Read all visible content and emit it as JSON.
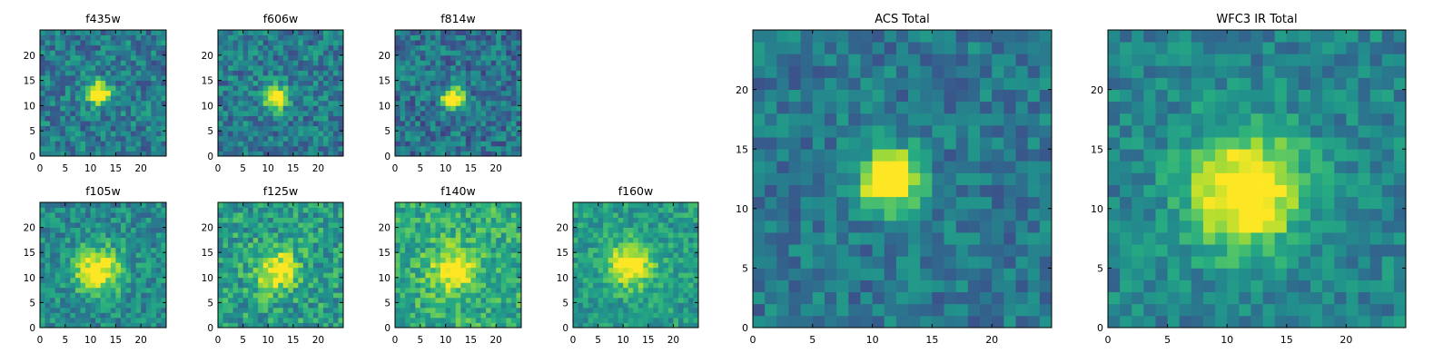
{
  "chart_data": [
    {
      "type": "heatmap",
      "title": "f435w",
      "xlabel": "",
      "ylabel": "",
      "xlim": [
        0,
        25
      ],
      "ylim": [
        0,
        25
      ],
      "xticks": [
        0,
        5,
        10,
        15,
        20
      ],
      "yticks": [
        0,
        5,
        10,
        15,
        20
      ],
      "colormap": "viridis",
      "grid": false,
      "source_peak": {
        "x": 11,
        "y": 12,
        "radius": 1.6,
        "intensity": 0.85
      },
      "background_level": 0.42,
      "noise": 0.38,
      "seed": 11
    },
    {
      "type": "heatmap",
      "title": "f606w",
      "xlabel": "",
      "ylabel": "",
      "xlim": [
        0,
        25
      ],
      "ylim": [
        0,
        25
      ],
      "xticks": [
        0,
        5,
        10,
        15,
        20
      ],
      "yticks": [
        0,
        5,
        10,
        15,
        20
      ],
      "colormap": "viridis",
      "grid": false,
      "source_peak": {
        "x": 11,
        "y": 11,
        "radius": 1.6,
        "intensity": 0.8
      },
      "background_level": 0.42,
      "noise": 0.38,
      "seed": 22
    },
    {
      "type": "heatmap",
      "title": "f814w",
      "xlabel": "",
      "ylabel": "",
      "xlim": [
        0,
        25
      ],
      "ylim": [
        0,
        25
      ],
      "xticks": [
        0,
        5,
        10,
        15,
        20
      ],
      "yticks": [
        0,
        5,
        10,
        15,
        20
      ],
      "colormap": "viridis",
      "grid": false,
      "source_peak": {
        "x": 11,
        "y": 11,
        "radius": 1.5,
        "intensity": 0.85
      },
      "background_level": 0.38,
      "noise": 0.38,
      "seed": 33
    },
    {
      "type": "heatmap",
      "title": "f105w",
      "xlabel": "",
      "ylabel": "",
      "xlim": [
        0,
        25
      ],
      "ylim": [
        0,
        25
      ],
      "xticks": [
        0,
        5,
        10,
        15,
        20
      ],
      "yticks": [
        0,
        5,
        10,
        15,
        20
      ],
      "colormap": "viridis",
      "grid": false,
      "source_peak": {
        "x": 11,
        "y": 11,
        "radius": 3.2,
        "intensity": 0.6
      },
      "background_level": 0.48,
      "noise": 0.34,
      "seed": 44
    },
    {
      "type": "heatmap",
      "title": "f125w",
      "xlabel": "",
      "ylabel": "",
      "xlim": [
        0,
        25
      ],
      "ylim": [
        0,
        25
      ],
      "xticks": [
        0,
        5,
        10,
        15,
        20
      ],
      "yticks": [
        0,
        5,
        10,
        15,
        20
      ],
      "colormap": "viridis",
      "grid": false,
      "source_peak": {
        "x": 11,
        "y": 11,
        "radius": 3.0,
        "intensity": 0.5
      },
      "background_level": 0.55,
      "noise": 0.4,
      "seed": 55
    },
    {
      "type": "heatmap",
      "title": "f140w",
      "xlabel": "",
      "ylabel": "",
      "xlim": [
        0,
        25
      ],
      "ylim": [
        0,
        25
      ],
      "xticks": [
        0,
        5,
        10,
        15,
        20
      ],
      "yticks": [
        0,
        5,
        10,
        15,
        20
      ],
      "colormap": "viridis",
      "grid": false,
      "source_peak": {
        "x": 11,
        "y": 11,
        "radius": 3.0,
        "intensity": 0.45
      },
      "background_level": 0.62,
      "noise": 0.36,
      "seed": 66
    },
    {
      "type": "heatmap",
      "title": "f160w",
      "xlabel": "",
      "ylabel": "",
      "xlim": [
        0,
        25
      ],
      "ylim": [
        0,
        25
      ],
      "xticks": [
        0,
        5,
        10,
        15,
        20
      ],
      "yticks": [
        0,
        5,
        10,
        15,
        20
      ],
      "colormap": "viridis",
      "grid": false,
      "source_peak": {
        "x": 11,
        "y": 12,
        "radius": 3.0,
        "intensity": 0.55
      },
      "background_level": 0.55,
      "noise": 0.3,
      "seed": 77
    },
    {
      "type": "heatmap",
      "title": "ACS Total",
      "xlabel": "",
      "ylabel": "",
      "xlim": [
        0,
        25
      ],
      "ylim": [
        0,
        25
      ],
      "xticks": [
        0,
        5,
        10,
        15,
        20
      ],
      "yticks": [
        0,
        5,
        10,
        15,
        20
      ],
      "colormap": "viridis",
      "grid": false,
      "source_peak": {
        "x": 11,
        "y": 12,
        "radius": 1.7,
        "intensity": 0.95
      },
      "background_level": 0.4,
      "noise": 0.3,
      "seed": 88
    },
    {
      "type": "heatmap",
      "title": "WFC3 IR Total",
      "xlabel": "",
      "ylabel": "",
      "xlim": [
        0,
        25
      ],
      "ylim": [
        0,
        25
      ],
      "xticks": [
        0,
        5,
        10,
        15,
        20
      ],
      "yticks": [
        0,
        5,
        10,
        15,
        20
      ],
      "colormap": "viridis",
      "grid": false,
      "source_peak": {
        "x": 11,
        "y": 11,
        "radius": 3.4,
        "intensity": 0.7
      },
      "background_level": 0.45,
      "noise": 0.28,
      "seed": 99
    }
  ]
}
